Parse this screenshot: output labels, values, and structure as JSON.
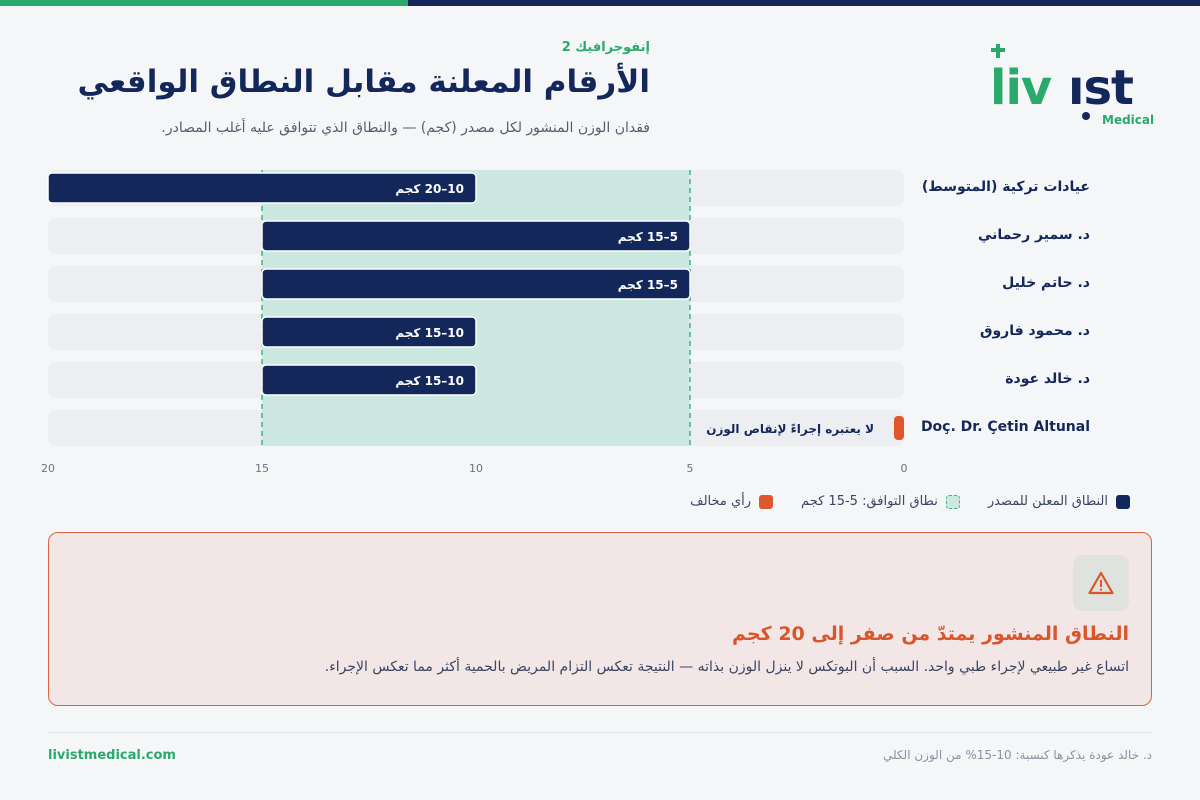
{
  "header": {
    "kicker": "إنفوجرافيك 2",
    "title": "الأرقام المعلنة مقابل النطاق الواقعي",
    "subtitle": "فقدان الوزن المنشور لكل مصدر (كجم) — والنطاق الذي تتوافق عليه أغلب المصادر."
  },
  "logo": {
    "wordmark": "livist",
    "tagline": "Medical"
  },
  "colors": {
    "navy": "#14275a",
    "green": "#2aaa6a",
    "agree_band": "#cde8e0",
    "dissent": "#e0572e",
    "row_bg": "#eceef2"
  },
  "chart_data": {
    "type": "bar",
    "orientation": "horizontal",
    "x_axis": {
      "min": 0,
      "max": 20,
      "ticks": [
        20,
        15,
        10,
        5,
        0
      ],
      "direction": "right-to-left"
    },
    "agreement_band": {
      "from": 5,
      "to": 15,
      "label": "نطاق التوافق: 5-15 كجم"
    },
    "rows": [
      {
        "name": "عيادات تركية (المتوسط)",
        "from": 10,
        "to": 20,
        "label": "10–20 كجم",
        "kind": "range",
        "ltr": false
      },
      {
        "name": "د. سمير رحماني",
        "from": 5,
        "to": 15,
        "label": "5–15 كجم",
        "kind": "range",
        "ltr": false
      },
      {
        "name": "د. حاتم خليل",
        "from": 5,
        "to": 15,
        "label": "5–15 كجم",
        "kind": "range",
        "ltr": false
      },
      {
        "name": "د. محمود فاروق",
        "from": 10,
        "to": 15,
        "label": "10–15 كجم",
        "kind": "range",
        "ltr": false
      },
      {
        "name": "د. خالد عودة",
        "from": 10,
        "to": 15,
        "label": "10–15 كجم",
        "kind": "range",
        "ltr": false
      },
      {
        "name": "Doç. Dr. Çetin Altunal",
        "from": 0,
        "to": 0,
        "label": "لا يعتبره إجراءً لإنقاص الوزن",
        "kind": "dissent",
        "ltr": true
      }
    ]
  },
  "legend": {
    "range": "النطاق المعلن للمصدر",
    "agree": "نطاق التوافق: 5-15 كجم",
    "dissent": "رأي مخالف"
  },
  "alert": {
    "icon": "warning-triangle-icon",
    "title": "النطاق المنشور يمتدّ من صفر إلى 20 كجم",
    "body": "اتساع غير طبيعي لإجراء طبي واحد. السبب أن البوتكس لا ينزل الوزن بذاته — النتيجة تعكس التزام المريض بالحمية أكثر مما تعكس الإجراء."
  },
  "footer": {
    "site": "livistmedical.com",
    "note": "د. خالد عودة يذكرها كنسبة: 10-15% من الوزن الكلي"
  }
}
